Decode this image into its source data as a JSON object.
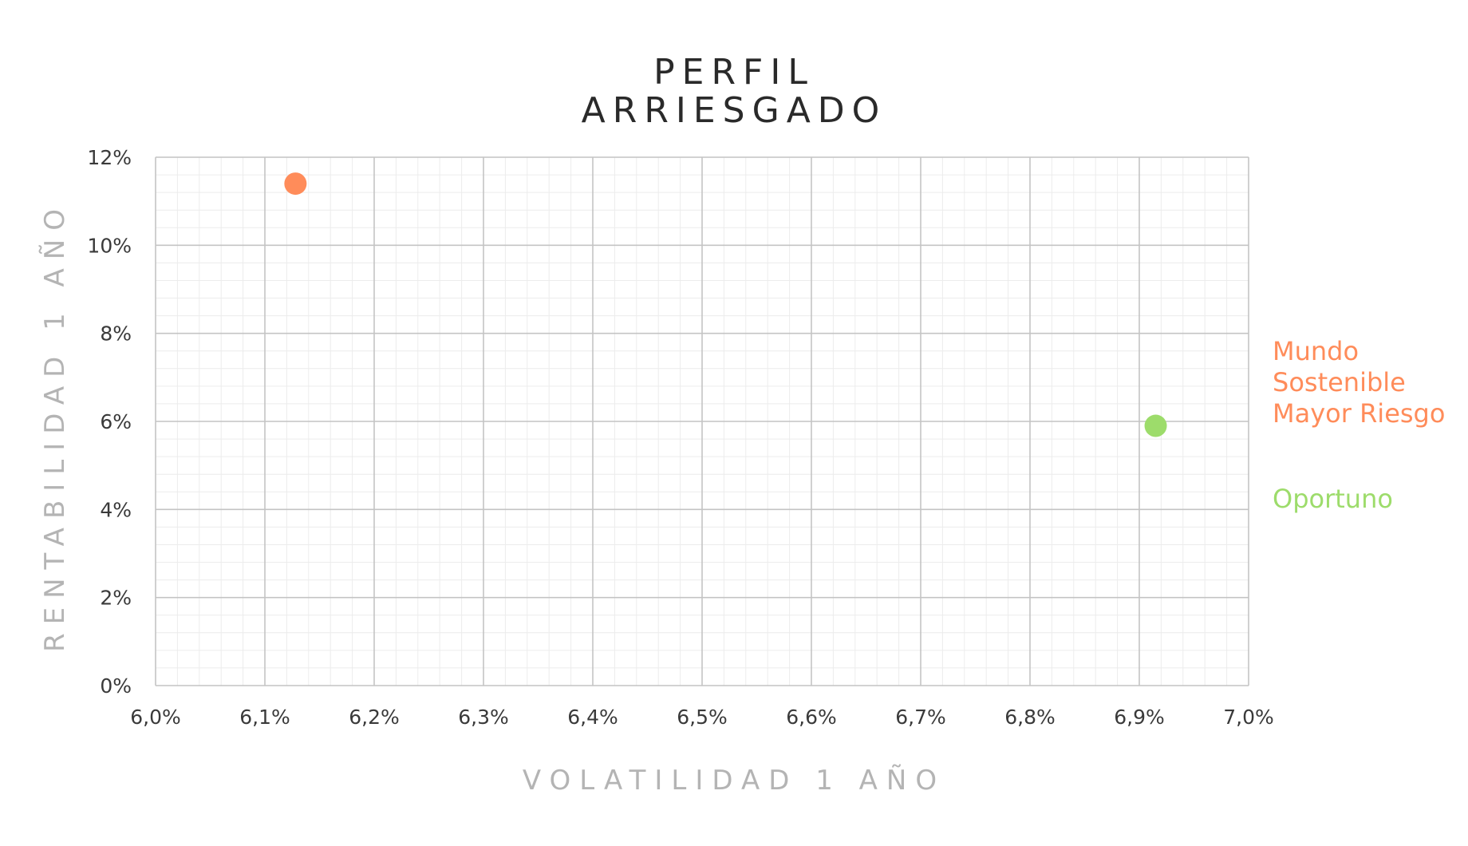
{
  "chart_data": {
    "type": "scatter",
    "title": [
      "PERFIL",
      "ARRIESGADO"
    ],
    "xlabel": "VOLATILIDAD 1 AÑO",
    "ylabel": "RENTABILIDAD 1 AÑO",
    "xlim": [
      6.0,
      7.0
    ],
    "ylim": [
      0,
      12
    ],
    "x_ticks": [
      6.0,
      6.1,
      6.2,
      6.3,
      6.4,
      6.5,
      6.6,
      6.7,
      6.8,
      6.9,
      7.0
    ],
    "x_tick_labels": [
      "6,0%",
      "6,1%",
      "6,2%",
      "6,3%",
      "6,4%",
      "6,5%",
      "6,6%",
      "6,7%",
      "6,8%",
      "6,9%",
      "7,0%"
    ],
    "y_ticks": [
      0,
      2,
      4,
      6,
      8,
      10,
      12
    ],
    "y_tick_labels": [
      "0%",
      "2%",
      "4%",
      "6%",
      "8%",
      "10%",
      "12%"
    ],
    "grid": true,
    "minor_grid": true,
    "legend_position": "right",
    "series": [
      {
        "name": "Mundo Sostenible Mayor Riesgo",
        "legend_lines": [
          "Mundo",
          "Sostenible",
          "Mayor Riesgo"
        ],
        "color": "#ff8c5a",
        "points": [
          {
            "x": 6.128,
            "y": 11.4
          }
        ]
      },
      {
        "name": "Oportuno",
        "legend_lines": [
          "Oportuno"
        ],
        "color": "#9ddc6b",
        "points": [
          {
            "x": 6.915,
            "y": 5.9
          }
        ]
      }
    ]
  }
}
